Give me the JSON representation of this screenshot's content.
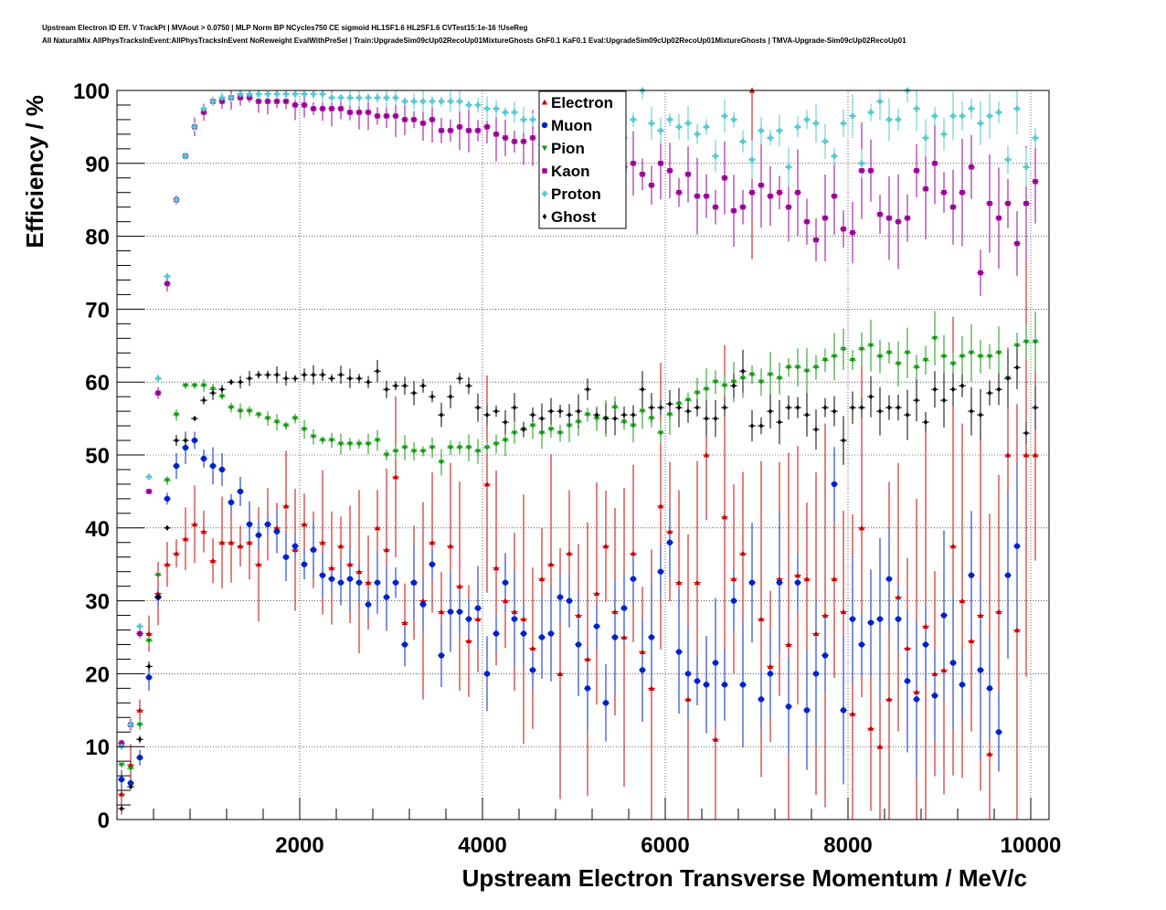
{
  "title_lines": [
    "Upstream Electron ID Eff. V TrackPt | MVAout > 0.0750 | MLP Norm BP NCycles750 CE sigmoid HL1SF1.6 HL2SF1.6 CVTest15:1e-16 !UseReg",
    "All NaturalMix AllPhysTracksInEvent:AllPhysTracksInEvent NoReweight EvalWithPreSel | Train:UpgradeSim09cUp02RecoUp01MixtureGhosts GhF0.1 KaF0.1 Eval:UpgradeSim09cUp02RecoUp01MixtureGhosts | TMVA-Upgrade-Sim09cUp02RecoUp01"
  ],
  "chart_data": {
    "type": "scatter",
    "xlabel": "Upstream Electron Transverse Momentum / MeV/c",
    "ylabel": "Efficiency / %",
    "xlim": [
      0,
      10200
    ],
    "ylim": [
      0,
      100
    ],
    "x_ticks": [
      2000,
      4000,
      6000,
      8000,
      10000
    ],
    "y_ticks": [
      0,
      10,
      20,
      30,
      40,
      50,
      60,
      70,
      80,
      90,
      100
    ],
    "grid": true,
    "legend_position": "top-center",
    "x": [
      50,
      150,
      250,
      350,
      450,
      550,
      650,
      750,
      850,
      950,
      1050,
      1150,
      1250,
      1350,
      1450,
      1550,
      1650,
      1750,
      1850,
      1950,
      2050,
      2150,
      2250,
      2350,
      2450,
      2550,
      2650,
      2750,
      2850,
      2950,
      3050,
      3150,
      3250,
      3350,
      3450,
      3550,
      3650,
      3750,
      3850,
      3950,
      4050,
      4150,
      4250,
      4350,
      4450,
      4550,
      4650,
      4750,
      4850,
      4950,
      5050,
      5150,
      5250,
      5350,
      5450,
      5550,
      5650,
      5750,
      5850,
      5950,
      6050,
      6150,
      6250,
      6350,
      6450,
      6550,
      6650,
      6750,
      6850,
      6950,
      7050,
      7150,
      7250,
      7350,
      7450,
      7550,
      7650,
      7750,
      7850,
      7950,
      8050,
      8150,
      8250,
      8350,
      8450,
      8550,
      8650,
      8750,
      8850,
      8950,
      9050,
      9150,
      9250,
      9350,
      9450,
      9550,
      9650,
      9750,
      9850,
      9950,
      10050
    ],
    "series": [
      {
        "name": "Electron",
        "color": "#cc0000",
        "marker": "triangle-up",
        "values": [
          3.5,
          7.5,
          15,
          25.5,
          31,
          35,
          36.5,
          38.5,
          40.5,
          39.5,
          35.5,
          38,
          38,
          37.5,
          38,
          35,
          40.5,
          40,
          43,
          37,
          40.5,
          37,
          38,
          34.5,
          37.5,
          35,
          34,
          32.5,
          40,
          37,
          47,
          27,
          32.5,
          30,
          38,
          28.5,
          37.5,
          32,
          24.5,
          27.5,
          46,
          34.5,
          30,
          28.5,
          27.5,
          23.5,
          33,
          35,
          20,
          36.5,
          28,
          22,
          31,
          37.5,
          28.5,
          25,
          36.5,
          23,
          18,
          43,
          39.5,
          32.5,
          16.5,
          32.5,
          50,
          11,
          41.5,
          33,
          36.5,
          100,
          27.5,
          21,
          33,
          24,
          33.5,
          33,
          25.5,
          28,
          33,
          28.5,
          14.5,
          40,
          12.5,
          10,
          16.5,
          30.5,
          23.5,
          17.5,
          26.5,
          20,
          20.5,
          37.5,
          30,
          24.5,
          28,
          9,
          28.5,
          50,
          26,
          50,
          50
        ]
      },
      {
        "name": "Muon",
        "color": "#0022cc",
        "marker": "circle",
        "values": [
          5.5,
          5,
          8.5,
          19.5,
          30.5,
          44,
          48.5,
          51,
          52,
          49.5,
          48.5,
          48,
          43.5,
          45,
          40.5,
          39,
          40.5,
          39.5,
          36,
          37.5,
          35,
          37,
          33.5,
          33,
          32.5,
          33,
          32.5,
          29.5,
          32.5,
          30.5,
          32.5,
          24,
          32.5,
          29.5,
          35,
          22.5,
          28.5,
          28.5,
          27.5,
          29,
          20,
          25.5,
          32.5,
          27.5,
          25.5,
          20.5,
          25,
          25.5,
          30.5,
          30,
          24,
          18,
          26.5,
          16,
          25,
          29,
          33,
          20.5,
          25,
          34,
          38,
          23,
          20,
          19,
          18.5,
          21.5,
          18.5,
          30,
          18.5,
          32.5,
          16.5,
          20,
          32.5,
          15.5,
          32.5,
          15,
          20,
          22.5,
          46,
          15,
          27.5,
          24,
          27,
          27.5,
          33,
          27.5,
          19,
          16.5,
          24,
          17,
          28,
          21.5,
          18.5,
          33.5,
          20.5,
          18,
          12,
          33.5,
          37.5,
          null,
          null
        ]
      },
      {
        "name": "Pion",
        "color": "#119911",
        "marker": "triangle-down",
        "values": [
          7.5,
          7,
          13,
          24.5,
          33.5,
          46.5,
          55.5,
          59.5,
          59.5,
          59.5,
          59,
          58,
          56.5,
          56,
          56,
          55.5,
          55,
          54.5,
          54,
          55,
          53.5,
          52.5,
          52,
          52,
          51.5,
          51.5,
          51.5,
          51.5,
          52,
          50,
          50.5,
          51,
          50.5,
          50.5,
          51,
          49,
          51,
          51,
          51,
          50.5,
          51,
          51.5,
          52,
          53,
          53.5,
          54,
          53,
          53.5,
          53,
          54,
          54.5,
          55.5,
          55,
          55,
          56.5,
          54.5,
          54,
          56,
          55,
          53,
          55.5,
          57,
          57.5,
          58.5,
          59,
          60,
          59.5,
          60,
          60.5,
          61,
          60,
          61,
          60.5,
          62,
          62,
          61.5,
          62,
          63,
          63.5,
          64.5,
          63,
          64.5,
          65,
          63.5,
          64,
          62.5,
          64,
          62,
          63,
          66,
          63.5,
          62.5,
          63.5,
          64,
          63.5,
          63.5,
          64,
          60.5,
          65,
          65.5,
          65.5
        ]
      },
      {
        "name": "Kaon",
        "color": "#990099",
        "marker": "square",
        "values": [
          10.5,
          13,
          25.5,
          45,
          58.5,
          73.5,
          85,
          91,
          95,
          97,
          98.5,
          98.5,
          99,
          99,
          99,
          98.5,
          98.5,
          98.5,
          98.5,
          98,
          98,
          97.5,
          97.5,
          97.5,
          97.5,
          97,
          97,
          97,
          96.5,
          96.5,
          96.5,
          96,
          96,
          95.5,
          96,
          94.5,
          94.5,
          95,
          94.5,
          94.5,
          95,
          94,
          93.5,
          93,
          93,
          93.5,
          92.5,
          93.5,
          92,
          92,
          92.5,
          92,
          91,
          90.5,
          90,
          89.5,
          90,
          88.5,
          87,
          90,
          89,
          86,
          88.5,
          85.5,
          85.5,
          84,
          88,
          83.5,
          84,
          86,
          87,
          85.5,
          86,
          84,
          86,
          82,
          79.5,
          82.5,
          85.5,
          81,
          80.5,
          89,
          89,
          83,
          82.5,
          82,
          82.5,
          89,
          86.5,
          90,
          86,
          84,
          86,
          89.5,
          75,
          84.5,
          82.5,
          84.5,
          79,
          84.5,
          87.5
        ]
      },
      {
        "name": "Proton",
        "color": "#55c8d0",
        "marker": "cross",
        "values": [
          10,
          13,
          26.5,
          47,
          60.5,
          74.5,
          85,
          91,
          95,
          97.5,
          98.5,
          99,
          99,
          99.5,
          99.5,
          99.5,
          99.5,
          99.5,
          99.5,
          99.5,
          99.5,
          99.5,
          99.5,
          99,
          99,
          99,
          99,
          99,
          99,
          99,
          99,
          98.5,
          98.5,
          98.5,
          98.5,
          98.5,
          98.5,
          98.5,
          98,
          98,
          97.5,
          97.5,
          97,
          97,
          96,
          96,
          96,
          96,
          96.5,
          96.5,
          96.5,
          95.5,
          95,
          94.5,
          94,
          93.5,
          96,
          100,
          95.5,
          94.5,
          96,
          95,
          95.5,
          94,
          95,
          91,
          96.5,
          96,
          93,
          90.5,
          94.5,
          93.5,
          94.5,
          89.5,
          95,
          96,
          95.5,
          93,
          91,
          95.5,
          96.5,
          90,
          97,
          98.5,
          96,
          96,
          100,
          97.5,
          93.5,
          96.5,
          94,
          96.5,
          96.5,
          97.5,
          95.5,
          96.5,
          97,
          90.5,
          97.5,
          89.5,
          93.5
        ]
      },
      {
        "name": "Ghost",
        "color": "#000000",
        "marker": "diamond",
        "values": [
          1.5,
          4.5,
          11,
          21,
          30.5,
          40,
          52,
          52,
          55,
          57.5,
          58.5,
          59,
          60,
          60,
          60.5,
          61,
          61,
          61,
          60.5,
          60.5,
          61,
          61,
          61,
          60.5,
          61,
          60.5,
          60.5,
          60,
          61.5,
          59,
          59.5,
          59.5,
          58.5,
          59.5,
          58,
          55.5,
          58,
          60.5,
          59.5,
          56.5,
          55.5,
          56,
          54.5,
          56.5,
          53.5,
          55.5,
          55,
          56,
          56,
          55.5,
          56,
          59,
          55.5,
          55,
          55,
          55.5,
          55.5,
          59,
          56.5,
          56.5,
          57,
          56.5,
          56,
          56.5,
          55,
          55,
          56.5,
          59.5,
          61.5,
          54,
          54,
          56,
          54.5,
          56.5,
          56.5,
          55.5,
          53.5,
          56.5,
          56,
          52,
          56.5,
          56.5,
          58,
          56,
          56.5,
          56.5,
          55.5,
          57.5,
          54.5,
          59,
          57.5,
          59,
          59.5,
          56,
          55.5,
          58.5,
          59,
          60.5,
          62,
          53,
          56.5
        ]
      }
    ]
  }
}
